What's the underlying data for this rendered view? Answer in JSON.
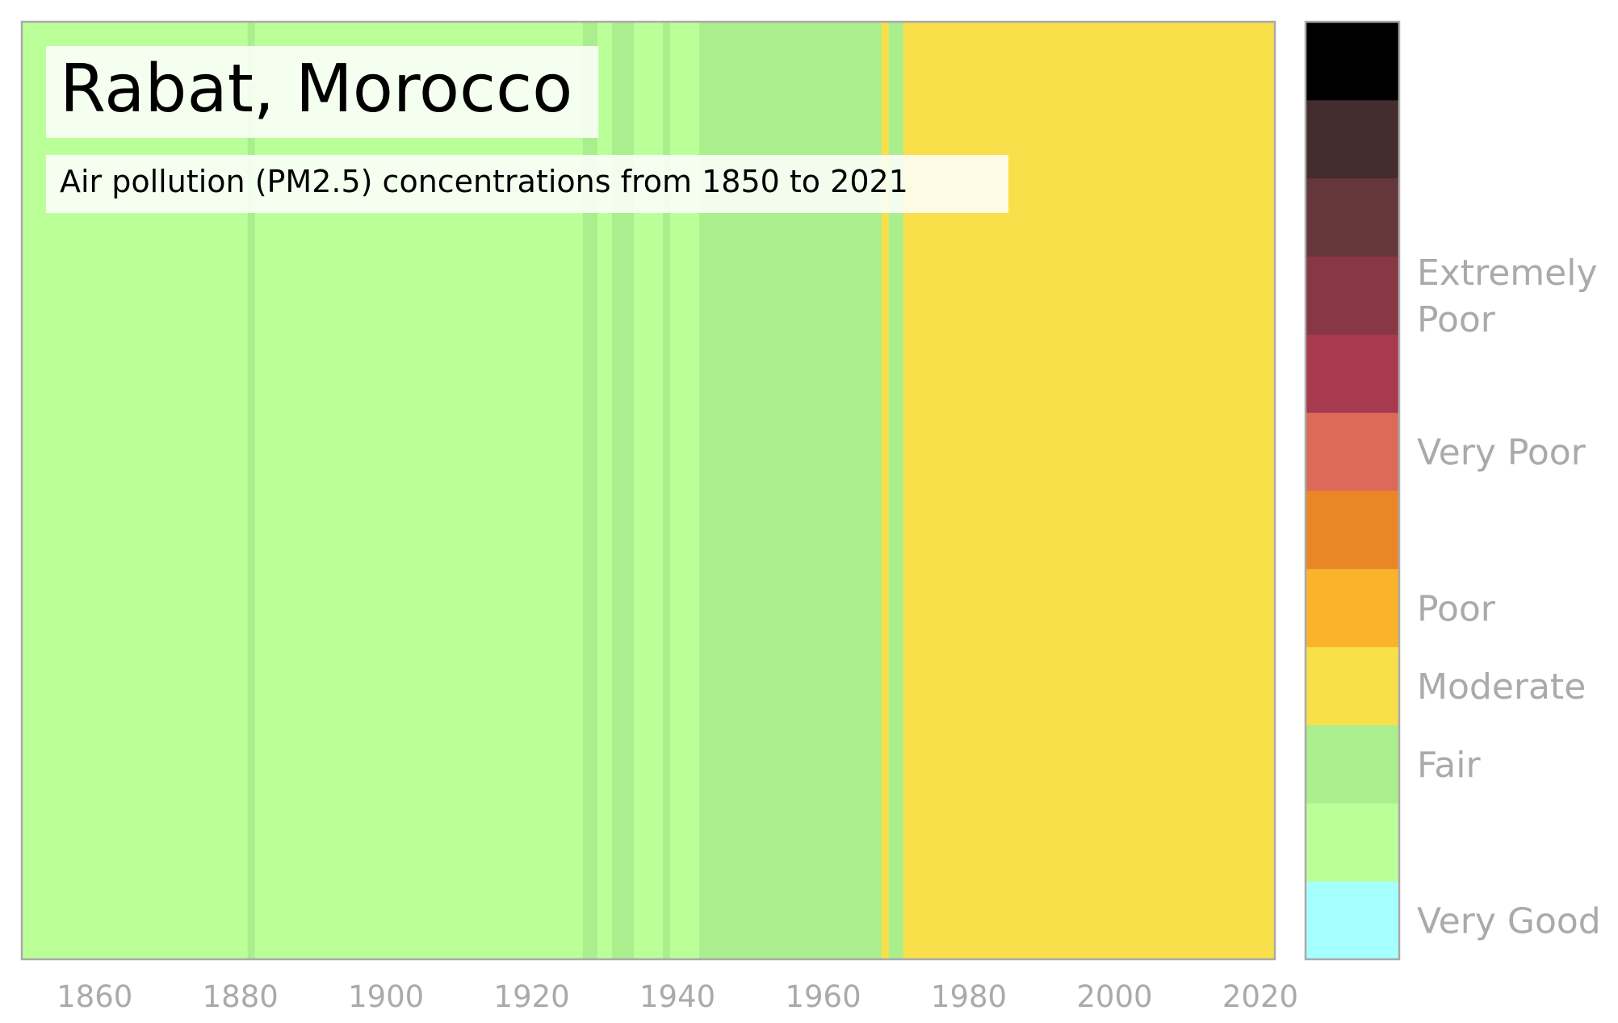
{
  "chart_data": {
    "type": "heatmap",
    "title": "Rabat, Morocco",
    "subtitle": "Air pollution (PM2.5) concentrations from 1850 to 2021",
    "x_start": 1850,
    "x_end": 2022,
    "x_ticks": [
      "1860",
      "1880",
      "1900",
      "1920",
      "1940",
      "1960",
      "1980",
      "2000",
      "2020"
    ],
    "segments": [
      {
        "start": 1850,
        "end": 1881,
        "color": "#bbff99"
      },
      {
        "start": 1881,
        "end": 1882,
        "color": "#aaee8e"
      },
      {
        "start": 1882,
        "end": 1927,
        "color": "#bbff99"
      },
      {
        "start": 1927,
        "end": 1929,
        "color": "#aaee8e"
      },
      {
        "start": 1929,
        "end": 1931,
        "color": "#bbff99"
      },
      {
        "start": 1931,
        "end": 1934,
        "color": "#aaee8e"
      },
      {
        "start": 1934,
        "end": 1938,
        "color": "#bbff99"
      },
      {
        "start": 1938,
        "end": 1939,
        "color": "#aaee8e"
      },
      {
        "start": 1939,
        "end": 1943,
        "color": "#bbff99"
      },
      {
        "start": 1943,
        "end": 1968,
        "color": "#aaee8e"
      },
      {
        "start": 1968,
        "end": 1969,
        "color": "#f9e04a"
      },
      {
        "start": 1969,
        "end": 1971,
        "color": "#aaee8e"
      },
      {
        "start": 1971,
        "end": 2022,
        "color": "#f9e04a"
      }
    ],
    "colorbar": {
      "colors": [
        "#a6ffff",
        "#bbff99",
        "#aaee8e",
        "#f9e04a",
        "#fbb32b",
        "#e98727",
        "#dd6958",
        "#a73a4f",
        "#883844",
        "#66373a",
        "#442c2f",
        "#000000"
      ],
      "labels": [
        {
          "text": [
            "Very Good"
          ],
          "level": 0.5
        },
        {
          "text": [
            "Fair"
          ],
          "level": 2.5
        },
        {
          "text": [
            "Moderate"
          ],
          "level": 3.5
        },
        {
          "text": [
            "Poor"
          ],
          "level": 4.5
        },
        {
          "text": [
            "Very Poor"
          ],
          "level": 6.5
        },
        {
          "text": [
            "Extremely",
            "Poor"
          ],
          "level": 8.5
        }
      ]
    }
  }
}
